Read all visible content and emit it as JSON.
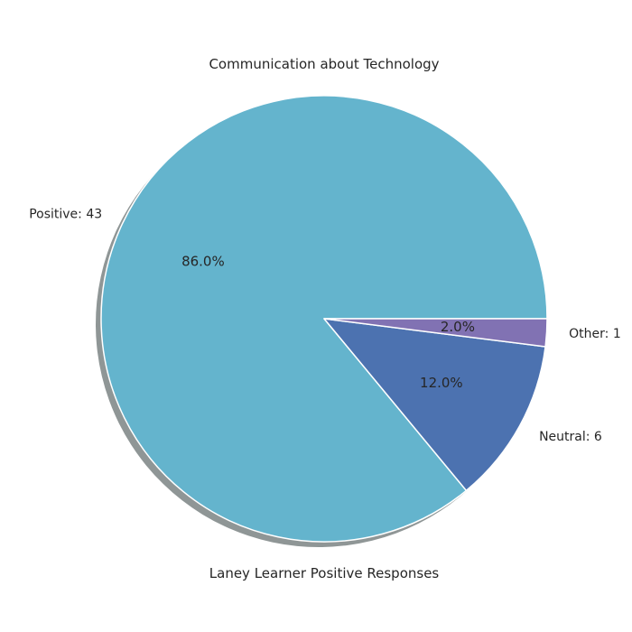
{
  "chart_data": {
    "type": "pie",
    "title": "Communication about Technology",
    "xlabel": "Laney Learner Positive Responses",
    "slices": [
      {
        "label": "Positive: 43",
        "value": 43,
        "percent_label": "86.0%",
        "color": "#64b4cd"
      },
      {
        "label": "Neutral: 6",
        "value": 6,
        "percent_label": "12.0%",
        "color": "#4c72b0"
      },
      {
        "label": "Other: 1",
        "value": 1,
        "percent_label": "2.0%",
        "color": "#8172b3"
      }
    ],
    "shadow": true,
    "legend": "none"
  }
}
